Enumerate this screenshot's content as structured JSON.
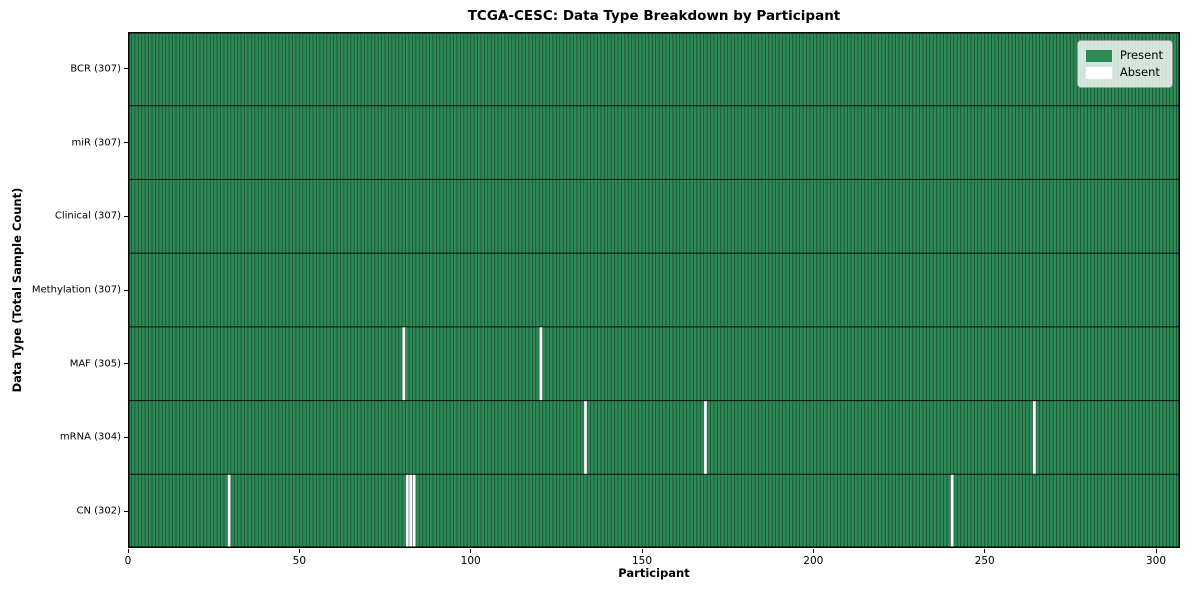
{
  "chart_data": {
    "type": "heatmap",
    "title": "TCGA-CESC: Data Type Breakdown by Participant",
    "xlabel": "Participant",
    "ylabel": "Data Type (Total Sample Count)",
    "n_participants": 307,
    "x_ticks": [
      0,
      50,
      100,
      150,
      200,
      250,
      300
    ],
    "rows": [
      {
        "label": "BCR (307)",
        "present_count": 307,
        "absent_participants": []
      },
      {
        "label": "miR (307)",
        "present_count": 307,
        "absent_participants": []
      },
      {
        "label": "Clinical (307)",
        "present_count": 307,
        "absent_participants": []
      },
      {
        "label": "Methylation (307)",
        "present_count": 307,
        "absent_participants": []
      },
      {
        "label": "MAF (305)",
        "present_count": 305,
        "absent_participants": [
          80,
          120
        ]
      },
      {
        "label": "mRNA (304)",
        "present_count": 304,
        "absent_participants": [
          133,
          168,
          264
        ]
      },
      {
        "label": "CN (302)",
        "present_count": 302,
        "absent_participants": [
          29,
          81,
          82,
          83,
          240
        ]
      }
    ],
    "legend": {
      "position": "upper right",
      "entries": [
        {
          "label": "Present",
          "color": "#2e8b57"
        },
        {
          "label": "Absent",
          "color": "#ffffff"
        }
      ]
    },
    "colors": {
      "present": "#2e8b57",
      "absent": "#ffffff",
      "cell_edge": "#0b2417",
      "row_divider": "#000000",
      "plot_border": "#000000"
    }
  }
}
